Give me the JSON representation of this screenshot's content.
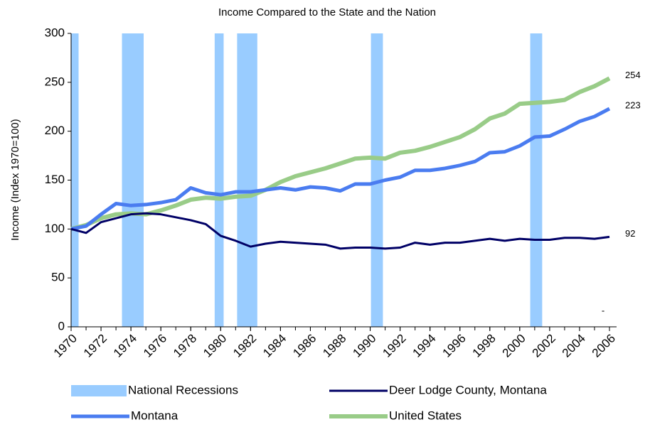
{
  "chart_data": {
    "type": "line",
    "title": "Income Compared to the State and the Nation",
    "y_label": "Income (Index 1970=100)",
    "x": [
      1970,
      1971,
      1972,
      1973,
      1974,
      1975,
      1976,
      1977,
      1978,
      1979,
      1980,
      1981,
      1982,
      1983,
      1984,
      1985,
      1986,
      1987,
      1988,
      1989,
      1990,
      1991,
      1992,
      1993,
      1994,
      1995,
      1996,
      1997,
      1998,
      1999,
      2000,
      2001,
      2002,
      2003,
      2004,
      2005,
      2006
    ],
    "xlim": [
      1970,
      2006
    ],
    "xticks": [
      1970,
      1972,
      1974,
      1976,
      1978,
      1980,
      1982,
      1984,
      1986,
      1988,
      1990,
      1992,
      1994,
      1996,
      1998,
      2000,
      2002,
      2004,
      2006
    ],
    "ylim": [
      0,
      300
    ],
    "yticks": [
      0,
      50,
      100,
      150,
      200,
      250,
      300
    ],
    "recessions": {
      "name": "National Recessions",
      "color": "#99ccff",
      "spans": [
        [
          1970,
          1970.5
        ],
        [
          1973.4,
          1974.85
        ],
        [
          1979.6,
          1980.2
        ],
        [
          1981.1,
          1982.45
        ],
        [
          1990.05,
          1990.85
        ],
        [
          2000.7,
          2001.5
        ]
      ]
    },
    "series": [
      {
        "name": "Deer Lodge County, Montana",
        "color": "#000066",
        "width": 3,
        "values": [
          100,
          96,
          107,
          111,
          115,
          116,
          115,
          112,
          109,
          105,
          93,
          88,
          82,
          85,
          87,
          86,
          85,
          84,
          80,
          81,
          81,
          80,
          81,
          86,
          84,
          86,
          86,
          88,
          90,
          88,
          90,
          89,
          89,
          91,
          91,
          90,
          92
        ]
      },
      {
        "name": "Montana",
        "color": "#4a7cf0",
        "width": 5,
        "values": [
          100,
          103,
          115,
          126,
          124,
          125,
          127,
          130,
          142,
          137,
          135,
          138,
          138,
          140,
          142,
          140,
          143,
          142,
          139,
          146,
          146,
          150,
          153,
          160,
          160,
          162,
          165,
          169,
          178,
          179,
          185,
          194,
          195,
          202,
          210,
          215,
          223
        ]
      },
      {
        "name": "United States",
        "color": "#99cc88",
        "width": 6,
        "values": [
          100,
          104,
          111,
          115,
          116,
          115,
          119,
          124,
          130,
          132,
          131,
          133,
          134,
          140,
          148,
          154,
          158,
          162,
          167,
          172,
          173,
          172,
          178,
          180,
          184,
          189,
          194,
          202,
          213,
          218,
          228,
          229,
          230,
          232,
          240,
          246,
          254
        ]
      }
    ],
    "annotation": "-"
  }
}
